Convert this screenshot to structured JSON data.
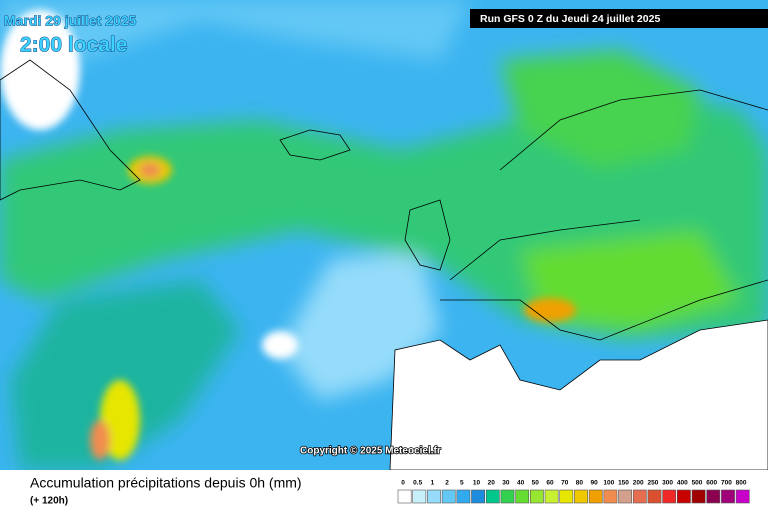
{
  "header": {
    "date": "Mardi 29 juillet 2025",
    "time": "2:00 locale",
    "run": "Run GFS 0 Z du Jeudi 24 juillet 2025"
  },
  "copyright": "Copyright © 2025 Meteociel.fr",
  "legend": {
    "title": "Accumulation précipitations depuis 0h (mm)",
    "subtitle": "(+ 120h)",
    "labels": [
      "0",
      "0.5",
      "1",
      "2",
      "5",
      "10",
      "20",
      "30",
      "40",
      "50",
      "60",
      "70",
      "80",
      "90",
      "100",
      "150",
      "200",
      "250",
      "300",
      "400",
      "500",
      "600",
      "700",
      "800"
    ],
    "colors": [
      "#ffffff",
      "#c8f0fa",
      "#96dcfa",
      "#64c8f5",
      "#32aaf0",
      "#1e8cdc",
      "#00c88c",
      "#32d250",
      "#64dc32",
      "#96e632",
      "#c8f032",
      "#e6e600",
      "#f0c800",
      "#f0a000",
      "#f08c50",
      "#d2a08c",
      "#e66e50",
      "#dc5032",
      "#f02828",
      "#c80000",
      "#a00000",
      "#8c0050",
      "#a00078",
      "#c800c8"
    ]
  }
}
